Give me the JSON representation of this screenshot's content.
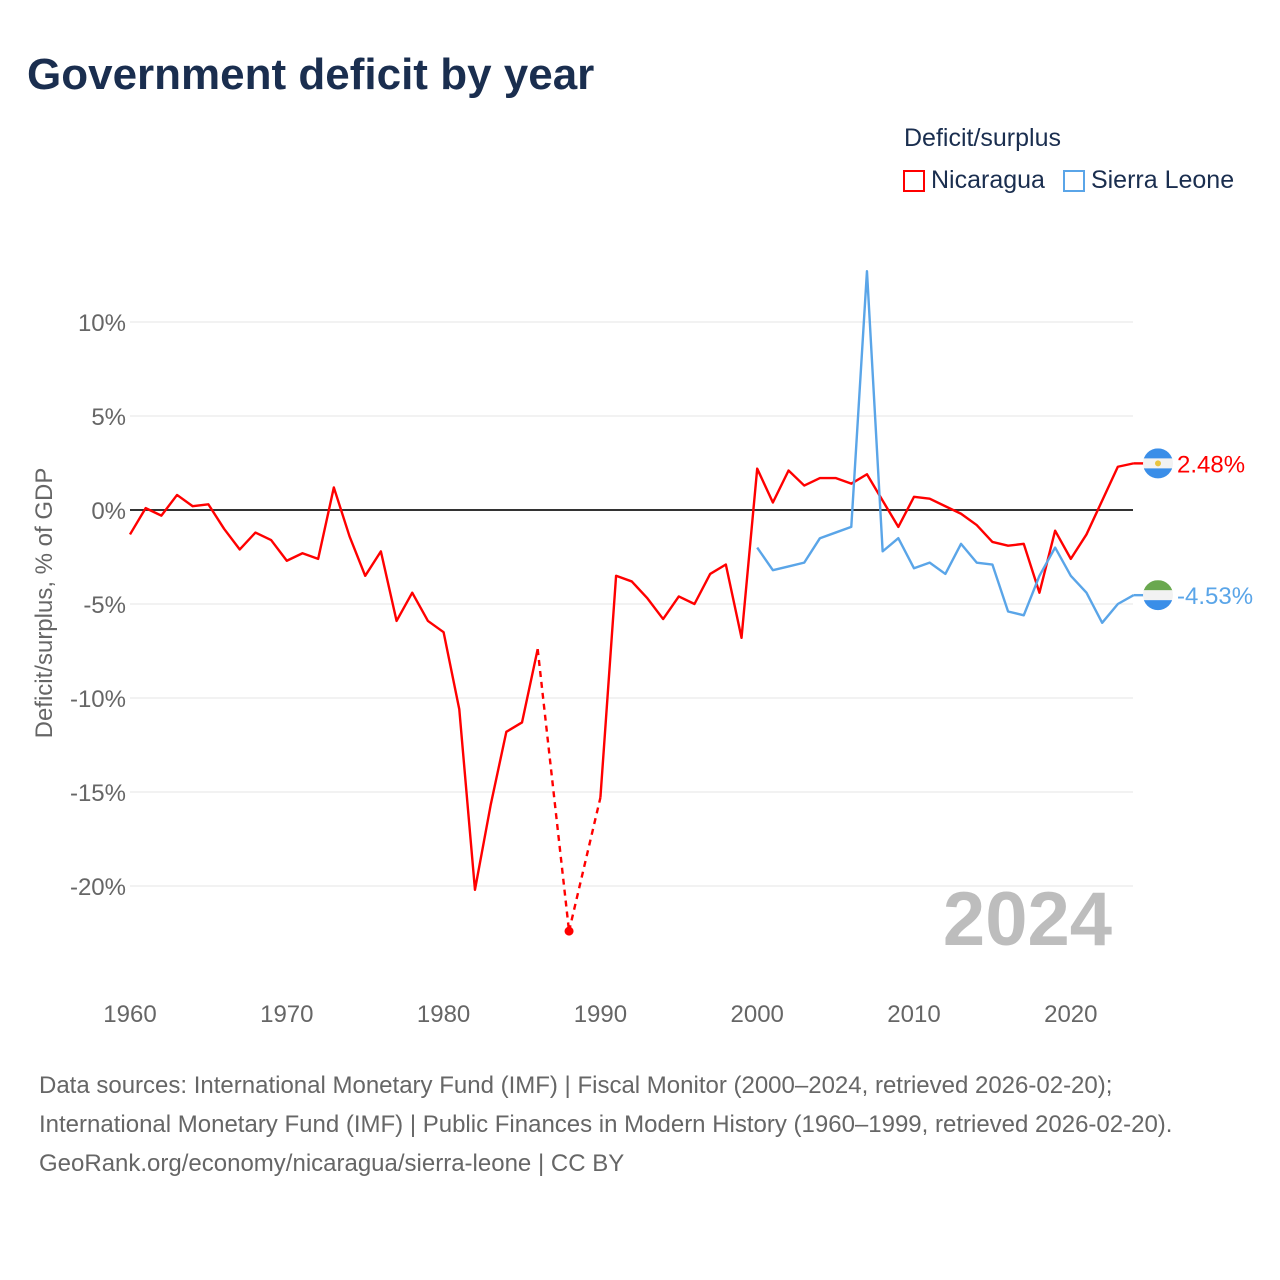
{
  "title": "Government deficit by year",
  "legend": {
    "title": "Deficit/surplus",
    "items": [
      {
        "name": "Nicaragua",
        "color": "#ff0000"
      },
      {
        "name": "Sierra Leone",
        "color": "#5aa5e8"
      }
    ]
  },
  "chart_data": {
    "type": "line",
    "title": "Government deficit by year",
    "xlabel": "",
    "ylabel": "Deficit/surplus, % of GDP",
    "xlim": [
      1960,
      2024
    ],
    "ylim": [
      -25,
      13
    ],
    "xticks": [
      1960,
      1970,
      1980,
      1990,
      2000,
      2010,
      2020
    ],
    "xtick_labels": [
      "1960",
      "1970",
      "1980",
      "1990",
      "2000",
      "2010",
      "2020"
    ],
    "yticks": [
      10,
      5,
      0,
      -5,
      -10,
      -15,
      -20
    ],
    "ytick_labels": [
      "10%",
      "5%",
      "0%",
      "-5%",
      "-10%",
      "-15%",
      "-20%"
    ],
    "grid": true,
    "legend_position": "top-right",
    "year_label": "2024",
    "series": [
      {
        "name": "Nicaragua",
        "color": "#ff0000",
        "end_label": "2.48%",
        "x": [
          1960,
          1961,
          1962,
          1963,
          1964,
          1965,
          1966,
          1967,
          1968,
          1969,
          1970,
          1971,
          1972,
          1973,
          1974,
          1975,
          1976,
          1977,
          1978,
          1979,
          1980,
          1981,
          1982,
          1983,
          1984,
          1985,
          1986,
          1988,
          1990,
          1991,
          1992,
          1993,
          1994,
          1995,
          1996,
          1997,
          1998,
          1999,
          2000,
          2001,
          2002,
          2003,
          2004,
          2005,
          2006,
          2007,
          2008,
          2009,
          2010,
          2011,
          2012,
          2013,
          2014,
          2015,
          2016,
          2017,
          2018,
          2019,
          2020,
          2021,
          2022,
          2023,
          2024
        ],
        "y": [
          -1.3,
          0.1,
          -0.3,
          0.8,
          0.2,
          0.3,
          -1.0,
          -2.1,
          -1.2,
          -1.6,
          -2.7,
          -2.3,
          -2.6,
          1.2,
          -1.4,
          -3.5,
          -2.2,
          -5.9,
          -4.4,
          -5.9,
          -6.5,
          -10.6,
          -20.2,
          -15.7,
          -11.8,
          -11.3,
          -7.4,
          -22.4,
          -15.3,
          -3.5,
          -3.8,
          -4.7,
          -5.8,
          -4.6,
          -5.0,
          -3.4,
          -2.9,
          -6.8,
          2.2,
          0.4,
          2.1,
          1.3,
          1.7,
          1.7,
          1.4,
          1.9,
          0.5,
          -0.9,
          0.7,
          0.6,
          0.2,
          -0.2,
          -0.8,
          -1.7,
          -1.9,
          -1.8,
          -4.4,
          -1.1,
          -2.6,
          -1.3,
          0.5,
          2.3,
          2.48
        ]
      },
      {
        "name": "Sierra Leone",
        "color": "#5aa5e8",
        "end_label": "-4.53%",
        "x": [
          2000,
          2001,
          2002,
          2003,
          2004,
          2005,
          2006,
          2007,
          2008,
          2009,
          2010,
          2011,
          2012,
          2013,
          2014,
          2015,
          2016,
          2017,
          2018,
          2019,
          2020,
          2021,
          2022,
          2023,
          2024
        ],
        "y": [
          -2.0,
          -3.2,
          -3.0,
          -2.8,
          -1.5,
          -1.2,
          -0.9,
          12.7,
          -2.2,
          -1.5,
          -3.1,
          -2.8,
          -3.4,
          -1.8,
          -2.8,
          -2.9,
          -5.4,
          -5.6,
          -3.5,
          -2.0,
          -3.5,
          -4.4,
          -6.0,
          -5.0,
          -4.53
        ]
      }
    ]
  },
  "footer": {
    "sources": "Data sources: International Monetary Fund (IMF) | Fiscal Monitor (2000–2024, retrieved 2026-02-20); International Monetary Fund (IMF) | Public Finances in Modern History (1960–1999, retrieved 2026-02-20).",
    "link": "GeoRank.org/economy/nicaragua/sierra-leone",
    "license": "CC BY"
  }
}
